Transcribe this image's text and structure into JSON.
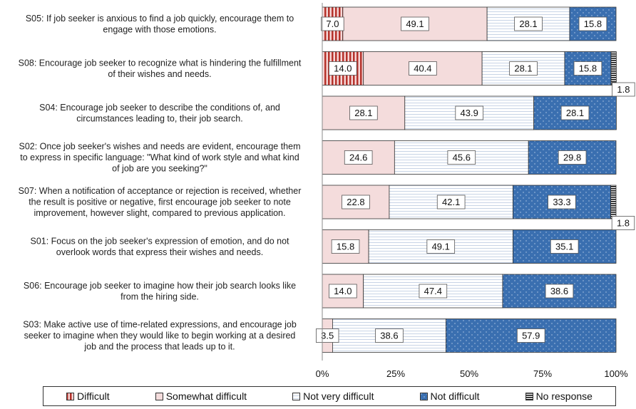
{
  "chart_data": {
    "type": "bar",
    "orientation": "horizontal",
    "stacked": true,
    "categories": [
      "S05: If job seeker is anxious to find a job quickly, encourage them to|engage with those emotions.",
      "S08: Encourage job seeker to recognize what is hindering the fulfillment|of their wishes and needs.",
      "S04: Encourage job seeker to describe the conditions of, and|circumstances leading to, their job search.",
      "S02: Once job seeker's wishes and needs are evident, encourage them|to express in specific language: \"What kind of work style and what kind|of job are you seeking?\"",
      "S07: When a notification of acceptance or rejection is received, whether|the result is positive or negative, first encourage job seeker to note|improvement, however slight, compared to previous application.",
      "S01: Focus on the job seeker's expression of emotion, and do not|overlook words that express their wishes and needs.",
      "S06: Encourage job seeker to imagine how their job search looks like|from the hiring side.",
      "S03: Make active use of time-related expressions, and encourage job|seeker to imagine when they would like to begin working at a desired|job and the process that leads up to it."
    ],
    "series": [
      {
        "name": "Difficult",
        "color": "#c0392b",
        "values": [
          7.0,
          14.0,
          0,
          0,
          0,
          0,
          0,
          0
        ]
      },
      {
        "name": "Somewhat difficult",
        "color": "#f4dcdc",
        "values": [
          49.1,
          40.4,
          28.1,
          24.6,
          22.8,
          15.8,
          14.0,
          3.5
        ]
      },
      {
        "name": "Not very difficult",
        "color": "#ffffff",
        "values": [
          28.1,
          28.1,
          43.9,
          45.6,
          42.1,
          49.1,
          47.4,
          38.6
        ]
      },
      {
        "name": "Not difficult",
        "color": "#3a6fb0",
        "values": [
          15.8,
          15.8,
          28.1,
          29.8,
          33.3,
          35.1,
          38.6,
          57.9
        ]
      },
      {
        "name": "No response",
        "color": "#111111",
        "values": [
          0,
          1.8,
          0,
          0,
          1.8,
          0,
          0,
          0
        ]
      }
    ],
    "xlim": [
      0,
      100
    ],
    "xticks": [
      "0%",
      "25%",
      "50%",
      "75%",
      "100%"
    ],
    "legend_position": "bottom"
  }
}
